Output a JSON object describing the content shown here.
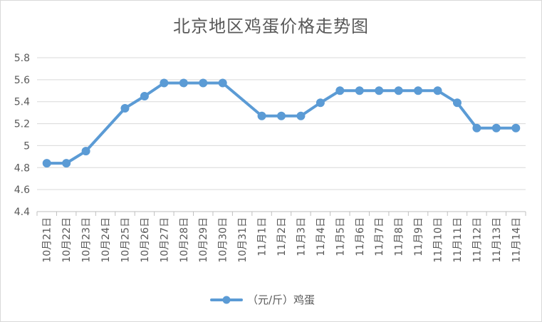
{
  "chart_data": {
    "type": "line",
    "title": "北京地区鸡蛋价格走势图",
    "xlabel": "",
    "ylabel": "",
    "categories": [
      "10月21日",
      "10月22日",
      "10月23日",
      "10月24日",
      "10月25日",
      "10月26日",
      "10月27日",
      "10月28日",
      "10月29日",
      "10月30日",
      "10月31日",
      "11月1日",
      "11月2日",
      "11月3日",
      "11月4日",
      "11月5日",
      "11月6日",
      "11月7日",
      "11月8日",
      "11月9日",
      "11月10日",
      "11月11日",
      "11月12日",
      "11月13日",
      "11月14日"
    ],
    "series": [
      {
        "name": "（元/斤）鸡蛋",
        "values": [
          4.84,
          4.84,
          4.95,
          null,
          5.34,
          5.45,
          5.57,
          5.57,
          5.57,
          5.57,
          null,
          5.27,
          5.27,
          5.27,
          5.39,
          5.5,
          5.5,
          5.5,
          5.5,
          5.5,
          5.5,
          5.39,
          5.16,
          5.16,
          5.16
        ]
      }
    ],
    "ylim": [
      4.4,
      5.8
    ],
    "yticks": [
      "4.4",
      "4.6",
      "4.8",
      "5",
      "5.2",
      "5.4",
      "5.6",
      "5.8"
    ],
    "grid": true,
    "legend_position": "bottom",
    "colors": {
      "line": "#5b9bd5",
      "grid": "#d9d9d9",
      "axis": "#bfbfbf",
      "text": "#595959"
    }
  }
}
